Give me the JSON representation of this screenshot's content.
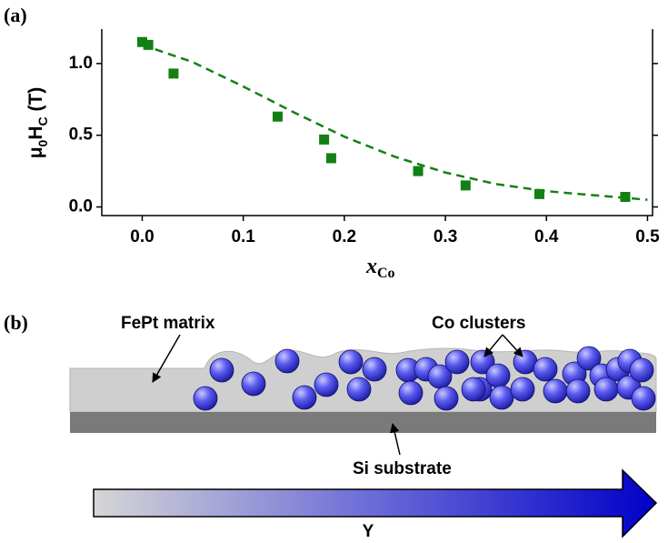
{
  "chart_data": {
    "type": "scatter",
    "panel_label": "(a)",
    "x_label": [
      "x",
      "Co"
    ],
    "y_label": [
      "μ",
      "0",
      "H",
      "C",
      " (T)"
    ],
    "xlim": [
      -0.04,
      0.505
    ],
    "ylim": [
      -0.06,
      1.24
    ],
    "xticks": [
      {
        "value": 0,
        "label": "0.0"
      },
      0.1,
      0.2,
      0.3,
      0.4,
      0.5
    ],
    "yticks": [
      {
        "value": 0,
        "label": "0.0"
      },
      0.5,
      {
        "value": 1,
        "label": "1.0"
      }
    ],
    "series": [
      {
        "color": "#138013",
        "marker": "square",
        "x": [
          0.0,
          0.006,
          0.031,
          0.134,
          0.18,
          0.187,
          0.273,
          0.32,
          0.393,
          0.478
        ],
        "values": [
          1.15,
          1.13,
          0.93,
          0.63,
          0.47,
          0.34,
          0.25,
          0.15,
          0.09,
          0.07
        ]
      }
    ],
    "fit": {
      "color": "#138013",
      "dashed": true,
      "x": [
        0,
        0.05,
        0.1,
        0.15,
        0.2,
        0.25,
        0.3,
        0.35,
        0.4,
        0.45,
        0.5
      ],
      "values": [
        1.13,
        1.01,
        0.84,
        0.66,
        0.49,
        0.35,
        0.24,
        0.16,
        0.11,
        0.08,
        0.05
      ]
    }
  },
  "panel_b": {
    "label": "(b)",
    "matrix_label": "FePt matrix",
    "cluster_label": "Co clusters",
    "substrate_label": "Si substrate",
    "gradient_label": "Y"
  }
}
